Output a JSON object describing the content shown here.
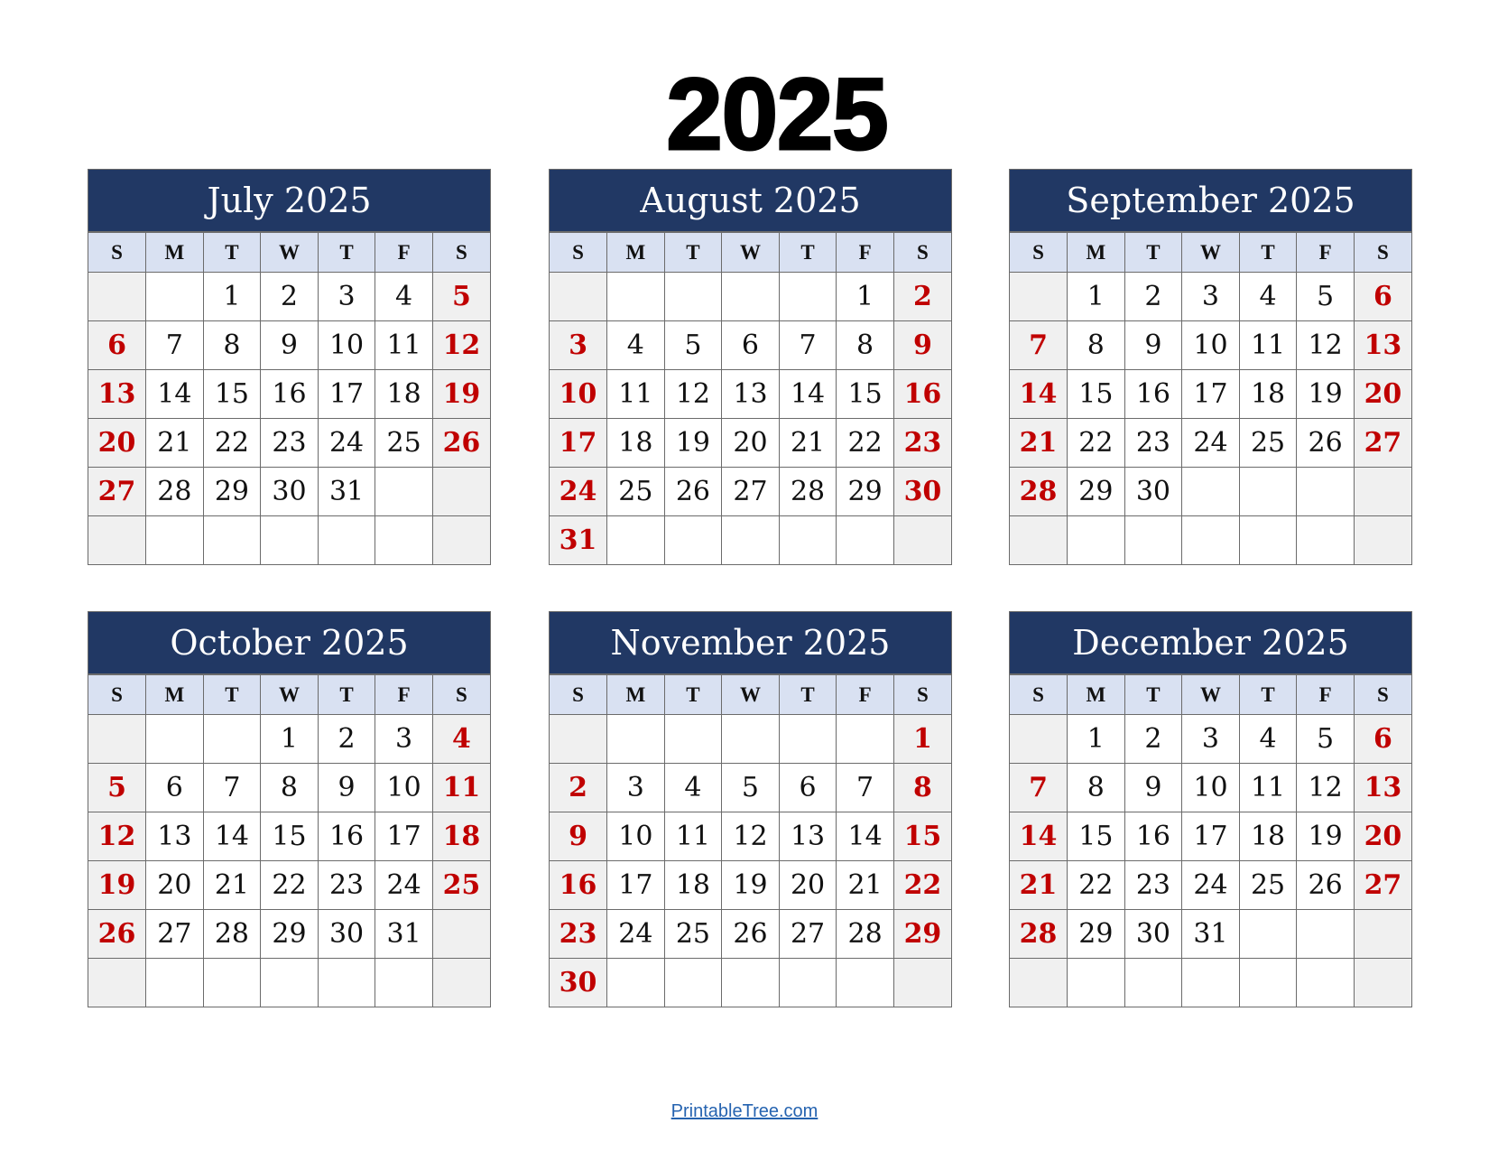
{
  "title": "2025",
  "weekdays": [
    "S",
    "M",
    "T",
    "W",
    "T",
    "F",
    "S"
  ],
  "colors": {
    "header_bg": "#213864",
    "weekday_bg": "#d9e1f2",
    "weekend_text": "#c00000",
    "weekend_bg": "#f0f0f0",
    "link": "#2563b0"
  },
  "months": [
    {
      "name": "July 2025",
      "weeks": [
        [
          "",
          "",
          "1",
          "2",
          "3",
          "4",
          "5"
        ],
        [
          "6",
          "7",
          "8",
          "9",
          "10",
          "11",
          "12"
        ],
        [
          "13",
          "14",
          "15",
          "16",
          "17",
          "18",
          "19"
        ],
        [
          "20",
          "21",
          "22",
          "23",
          "24",
          "25",
          "26"
        ],
        [
          "27",
          "28",
          "29",
          "30",
          "31",
          "",
          ""
        ],
        [
          "",
          "",
          "",
          "",
          "",
          "",
          ""
        ]
      ]
    },
    {
      "name": "August 2025",
      "weeks": [
        [
          "",
          "",
          "",
          "",
          "",
          "1",
          "2"
        ],
        [
          "3",
          "4",
          "5",
          "6",
          "7",
          "8",
          "9"
        ],
        [
          "10",
          "11",
          "12",
          "13",
          "14",
          "15",
          "16"
        ],
        [
          "17",
          "18",
          "19",
          "20",
          "21",
          "22",
          "23"
        ],
        [
          "24",
          "25",
          "26",
          "27",
          "28",
          "29",
          "30"
        ],
        [
          "31",
          "",
          "",
          "",
          "",
          "",
          ""
        ]
      ]
    },
    {
      "name": "September 2025",
      "weeks": [
        [
          "",
          "1",
          "2",
          "3",
          "4",
          "5",
          "6"
        ],
        [
          "7",
          "8",
          "9",
          "10",
          "11",
          "12",
          "13"
        ],
        [
          "14",
          "15",
          "16",
          "17",
          "18",
          "19",
          "20"
        ],
        [
          "21",
          "22",
          "23",
          "24",
          "25",
          "26",
          "27"
        ],
        [
          "28",
          "29",
          "30",
          "",
          "",
          "",
          ""
        ],
        [
          "",
          "",
          "",
          "",
          "",
          "",
          ""
        ]
      ]
    },
    {
      "name": "October 2025",
      "weeks": [
        [
          "",
          "",
          "",
          "1",
          "2",
          "3",
          "4"
        ],
        [
          "5",
          "6",
          "7",
          "8",
          "9",
          "10",
          "11"
        ],
        [
          "12",
          "13",
          "14",
          "15",
          "16",
          "17",
          "18"
        ],
        [
          "19",
          "20",
          "21",
          "22",
          "23",
          "24",
          "25"
        ],
        [
          "26",
          "27",
          "28",
          "29",
          "30",
          "31",
          ""
        ],
        [
          "",
          "",
          "",
          "",
          "",
          "",
          ""
        ]
      ]
    },
    {
      "name": "November 2025",
      "weeks": [
        [
          "",
          "",
          "",
          "",
          "",
          "",
          "1"
        ],
        [
          "2",
          "3",
          "4",
          "5",
          "6",
          "7",
          "8"
        ],
        [
          "9",
          "10",
          "11",
          "12",
          "13",
          "14",
          "15"
        ],
        [
          "16",
          "17",
          "18",
          "19",
          "20",
          "21",
          "22"
        ],
        [
          "23",
          "24",
          "25",
          "26",
          "27",
          "28",
          "29"
        ],
        [
          "30",
          "",
          "",
          "",
          "",
          "",
          ""
        ]
      ]
    },
    {
      "name": "December 2025",
      "weeks": [
        [
          "",
          "1",
          "2",
          "3",
          "4",
          "5",
          "6"
        ],
        [
          "7",
          "8",
          "9",
          "10",
          "11",
          "12",
          "13"
        ],
        [
          "14",
          "15",
          "16",
          "17",
          "18",
          "19",
          "20"
        ],
        [
          "21",
          "22",
          "23",
          "24",
          "25",
          "26",
          "27"
        ],
        [
          "28",
          "29",
          "30",
          "31",
          "",
          "",
          ""
        ],
        [
          "",
          "",
          "",
          "",
          "",
          "",
          ""
        ]
      ]
    }
  ],
  "footer": {
    "link_text": "PrintableTree.com"
  }
}
